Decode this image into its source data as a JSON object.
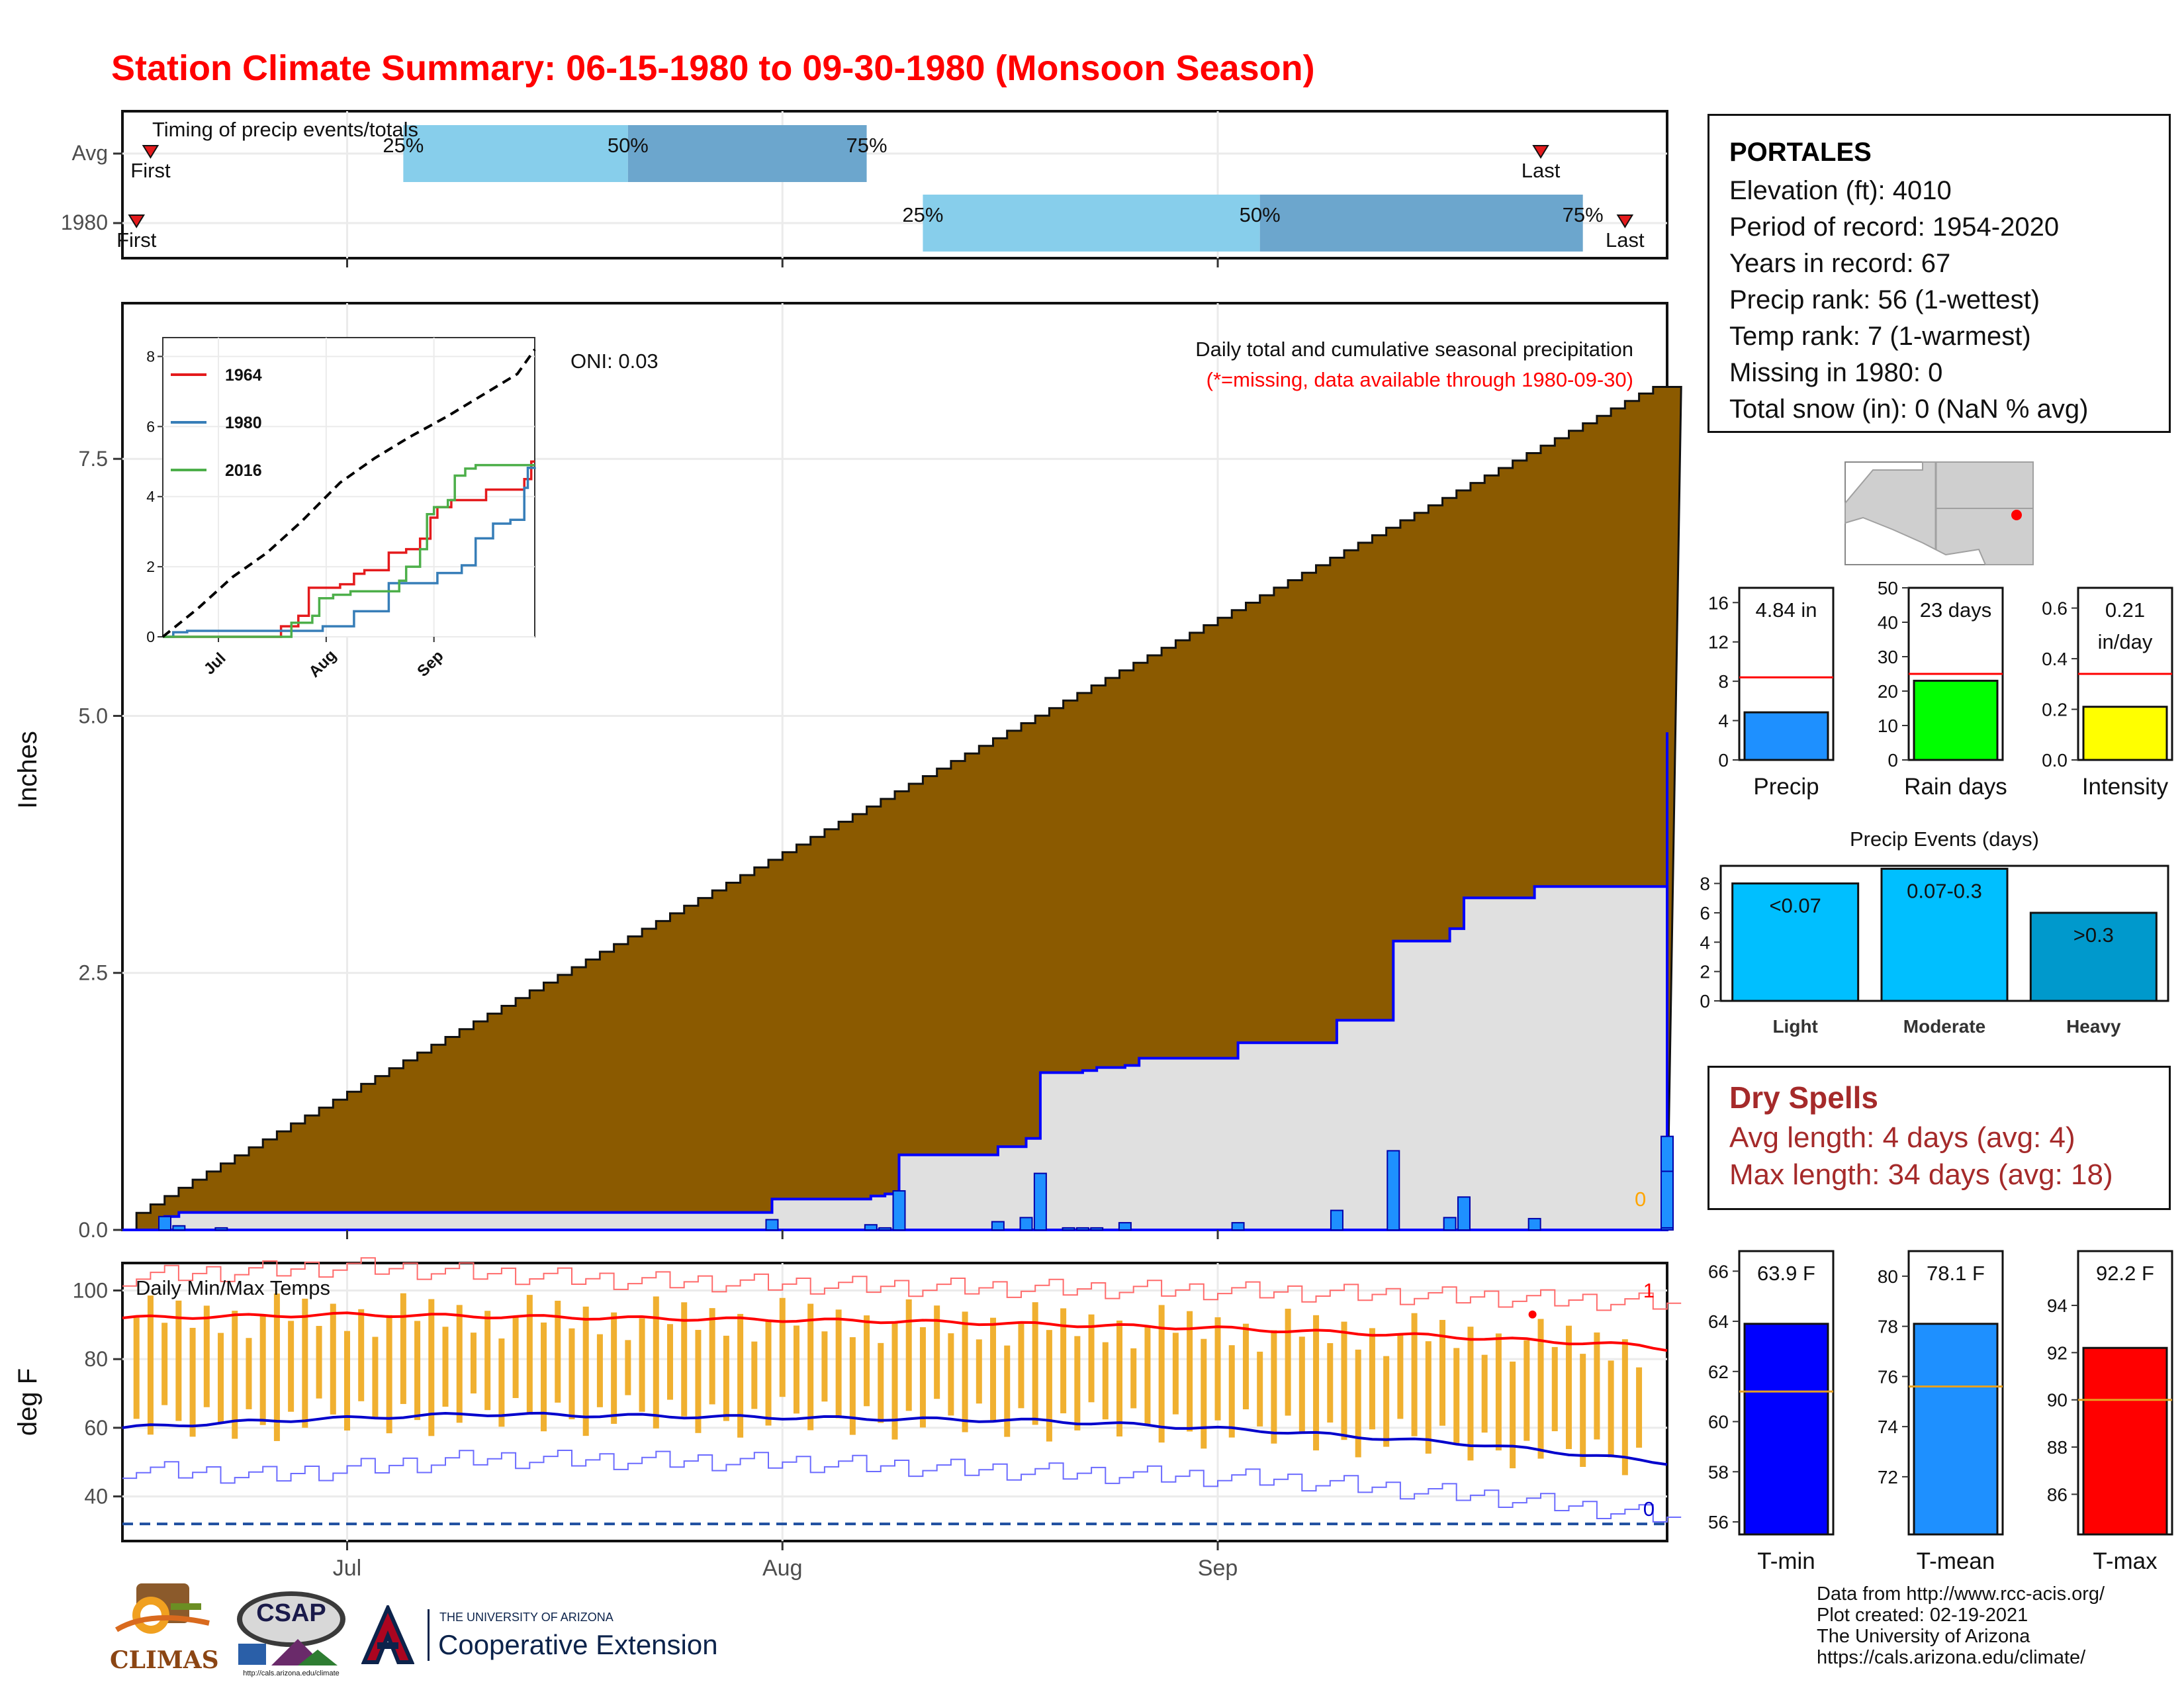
{
  "title": "Station Climate Summary: 06-15-1980 to 09-30-1980 (Monsoon Season)",
  "colors": {
    "title": "#ff0000",
    "cumulative_fill": "#8b5a00",
    "current_fill": "#e0e0e0",
    "current_line": "#0000ff",
    "daily_bars": "#1e90ff",
    "temp_bars": "#f0b030",
    "tmax_line": "#ff0000",
    "tmin_line": "#0000cc",
    "q_light": "#87ceeb",
    "q_dark": "#6ca6cd"
  },
  "timing": {
    "title": "Timing of precip events/totals",
    "row_labels": [
      "Avg",
      "1980"
    ],
    "pct_labels": [
      "25%",
      "50%",
      "75%"
    ],
    "first_label": "First",
    "last_label": "Last"
  },
  "station": {
    "name": "PORTALES",
    "lines": [
      "Elevation (ft): 4010",
      "Period of record: 1954-2020",
      "Years in record: 67",
      "Precip rank: 56 (1-wettest)",
      "Temp rank: 7 (1-warmest)",
      "Missing in 1980: 0",
      "Total snow (in): 0 (NaN % avg)"
    ]
  },
  "dry_spells": {
    "title": "Dry Spells",
    "avg_line": "Avg length: 4 days (avg: 4)",
    "max_line": "Max length: 34 days (avg: 18)"
  },
  "credits": [
    "Data from http://www.rcc-acis.org/",
    "Plot created: 02-19-2021",
    "The University of Arizona",
    "https://cals.arizona.edu/climate/"
  ],
  "logos": {
    "climas": "CLIMAS",
    "csap": "CSAP",
    "csap_url": "http://cals.arizona.edu/climate",
    "ua_small": "THE UNIVERSITY OF ARIZONA",
    "ua_big": "Cooperative Extension"
  },
  "chart_data": [
    {
      "id": "timing",
      "type": "bar",
      "title": "Timing of precip events/totals",
      "rows": [
        {
          "name": "Avg",
          "first": "1980-06-17",
          "p25": "1980-07-05",
          "p50": "1980-07-21",
          "p75": "1980-08-07",
          "last": "1980-09-24"
        },
        {
          "name": "1980",
          "first": "1980-06-16",
          "p25": "1980-08-11",
          "p50": "1980-09-04",
          "p75": "1980-09-27",
          "last": "1980-09-30"
        }
      ]
    },
    {
      "id": "main_precip",
      "type": "area",
      "title": "Daily total and cumulative seasonal precipitation",
      "subtitle": "(*=missing, data available through 1980-09-30)",
      "annotation": "ONI: 0.03",
      "ylabel": "Inches",
      "ylim": [
        0,
        8.95
      ],
      "yticks": [
        0.0,
        2.5,
        5.0,
        7.5
      ],
      "xticks": [
        "Jul",
        "Aug",
        "Sep"
      ],
      "xrange": [
        "1980-06-15",
        "1980-09-30"
      ],
      "right_label": "0",
      "avg_cumulative_end": 8.2,
      "cumulative_1980": [
        [
          "1980-06-15",
          0.0
        ],
        [
          "1980-06-18",
          0.13
        ],
        [
          "1980-06-19",
          0.17
        ],
        [
          "1980-06-22",
          0.17
        ],
        [
          "1980-07-30",
          0.17
        ],
        [
          "1980-07-31",
          0.3
        ],
        [
          "1980-08-06",
          0.3
        ],
        [
          "1980-08-07",
          0.33
        ],
        [
          "1980-08-08",
          0.35
        ],
        [
          "1980-08-09",
          0.73
        ],
        [
          "1980-08-15",
          0.73
        ],
        [
          "1980-08-16",
          0.81
        ],
        [
          "1980-08-17",
          0.81
        ],
        [
          "1980-08-18",
          0.89
        ],
        [
          "1980-08-19",
          1.53
        ],
        [
          "1980-08-22",
          1.55
        ],
        [
          "1980-08-23",
          1.58
        ],
        [
          "1980-08-25",
          1.6
        ],
        [
          "1980-08-26",
          1.67
        ],
        [
          "1980-09-01",
          1.67
        ],
        [
          "1980-09-02",
          1.82
        ],
        [
          "1980-09-08",
          1.82
        ],
        [
          "1980-09-09",
          2.04
        ],
        [
          "1980-09-12",
          2.04
        ],
        [
          "1980-09-13",
          2.81
        ],
        [
          "1980-09-16",
          2.81
        ],
        [
          "1980-09-17",
          2.93
        ],
        [
          "1980-09-18",
          3.23
        ],
        [
          "1980-09-22",
          3.23
        ],
        [
          "1980-09-23",
          3.34
        ],
        [
          "1980-10-02",
          3.34
        ],
        [
          "1980-10-03",
          4.25
        ],
        [
          "1980-10-04",
          4.82
        ],
        [
          "1980-10-05",
          4.84
        ]
      ],
      "daily_1980": [
        [
          "1980-06-18",
          0.13
        ],
        [
          "1980-06-19",
          0.04
        ],
        [
          "1980-06-22",
          0.02
        ],
        [
          "1980-07-31",
          0.1
        ],
        [
          "1980-08-07",
          0.05
        ],
        [
          "1980-08-08",
          0.02
        ],
        [
          "1980-08-09",
          0.38
        ],
        [
          "1980-08-16",
          0.08
        ],
        [
          "1980-08-18",
          0.12
        ],
        [
          "1980-08-19",
          0.55
        ],
        [
          "1980-08-21",
          0.02
        ],
        [
          "1980-08-22",
          0.02
        ],
        [
          "1980-08-23",
          0.02
        ],
        [
          "1980-08-25",
          0.07
        ],
        [
          "1980-09-02",
          0.07
        ],
        [
          "1980-09-09",
          0.19
        ],
        [
          "1980-09-13",
          0.77
        ],
        [
          "1980-09-17",
          0.12
        ],
        [
          "1980-09-18",
          0.32
        ],
        [
          "1980-09-23",
          0.11
        ],
        [
          "1980-10-03",
          0.91
        ],
        [
          "1980-10-04",
          0.57
        ],
        [
          "1980-10-05",
          0.02
        ]
      ]
    },
    {
      "id": "inset",
      "type": "line",
      "yticks": [
        0,
        2,
        4,
        6,
        8
      ],
      "xticks": [
        "Jul",
        "Aug",
        "Sep"
      ],
      "ylim": [
        0,
        8.2
      ],
      "series": [
        {
          "name": "1964",
          "color": "#e41a1c",
          "points": [
            [
              "1980-06-15",
              0
            ],
            [
              "1980-07-14",
              0
            ],
            [
              "1980-07-19",
              0.3
            ],
            [
              "1980-07-24",
              0.6
            ],
            [
              "1980-07-27",
              1.4
            ],
            [
              "1980-08-05",
              1.5
            ],
            [
              "1980-08-09",
              1.8
            ],
            [
              "1980-08-12",
              1.9
            ],
            [
              "1980-08-16",
              1.9
            ],
            [
              "1980-08-19",
              2.4
            ],
            [
              "1980-08-24",
              2.5
            ],
            [
              "1980-08-28",
              2.8
            ],
            [
              "1980-08-31",
              3.4
            ],
            [
              "1980-09-02",
              3.7
            ],
            [
              "1980-09-06",
              3.9
            ],
            [
              "1980-09-16",
              4.2
            ],
            [
              "1980-09-27",
              4.5
            ],
            [
              "1980-09-29",
              5.0
            ],
            [
              "1980-09-30",
              5.0
            ]
          ]
        },
        {
          "name": "1980",
          "color": "#377eb8",
          "points": [
            [
              "1980-06-15",
              0
            ],
            [
              "1980-06-18",
              0.13
            ],
            [
              "1980-06-22",
              0.17
            ],
            [
              "1980-07-31",
              0.3
            ],
            [
              "1980-08-09",
              0.73
            ],
            [
              "1980-08-19",
              1.53
            ],
            [
              "1980-09-02",
              1.82
            ],
            [
              "1980-09-09",
              2.04
            ],
            [
              "1980-09-13",
              2.81
            ],
            [
              "1980-09-18",
              3.23
            ],
            [
              "1980-09-23",
              3.34
            ],
            [
              "1980-09-27",
              4.25
            ],
            [
              "1980-09-28",
              4.82
            ],
            [
              "1980-09-30",
              4.84
            ]
          ]
        },
        {
          "name": "2016",
          "color": "#4daf4a",
          "points": [
            [
              "1980-06-15",
              0
            ],
            [
              "1980-07-14",
              0
            ],
            [
              "1980-07-22",
              0.4
            ],
            [
              "1980-07-28",
              0.6
            ],
            [
              "1980-07-30",
              1.1
            ],
            [
              "1980-08-03",
              1.2
            ],
            [
              "1980-08-08",
              1.3
            ],
            [
              "1980-08-15",
              1.3
            ],
            [
              "1980-08-22",
              1.6
            ],
            [
              "1980-08-24",
              2.0
            ],
            [
              "1980-08-28",
              2.5
            ],
            [
              "1980-08-30",
              3.5
            ],
            [
              "1980-09-01",
              3.7
            ],
            [
              "1980-09-05",
              3.9
            ],
            [
              "1980-09-07",
              4.6
            ],
            [
              "1980-09-10",
              4.8
            ],
            [
              "1980-09-13",
              4.9
            ],
            [
              "1980-09-16",
              4.9
            ],
            [
              "1980-09-30",
              4.9
            ]
          ]
        },
        {
          "name": "",
          "color": "#000000",
          "dashed": true,
          "points": [
            [
              "1980-06-15",
              0
            ],
            [
              "1980-06-25",
              0.8
            ],
            [
              "1980-07-05",
              1.7
            ],
            [
              "1980-07-15",
              2.4
            ],
            [
              "1980-07-25",
              3.3
            ],
            [
              "1980-08-05",
              4.4
            ],
            [
              "1980-08-15",
              5.1
            ],
            [
              "1980-08-25",
              5.7
            ],
            [
              "1980-09-05",
              6.3
            ],
            [
              "1980-09-15",
              6.9
            ],
            [
              "1980-09-25",
              7.5
            ],
            [
              "1980-09-30",
              8.2
            ]
          ]
        }
      ]
    },
    {
      "id": "stat_bars",
      "type": "bar",
      "panels": [
        {
          "label": "Precip",
          "value": 4.84,
          "value_label": "4.84 in",
          "avg": 8.4,
          "ylim": [
            0,
            17.5
          ],
          "yticks": [
            0,
            4,
            8,
            12,
            16
          ],
          "color": "#1e90ff"
        },
        {
          "label": "Rain days",
          "value": 23,
          "value_label": "23 days",
          "avg": 25,
          "ylim": [
            0,
            50
          ],
          "yticks": [
            0,
            10,
            20,
            30,
            40,
            50
          ],
          "color": "#00ff00"
        },
        {
          "label": "Intensity",
          "value": 0.21,
          "value_label": "0.21 in/day",
          "avg": 0.34,
          "ylim": [
            0,
            0.68
          ],
          "yticks": [
            0.0,
            0.2,
            0.4,
            0.6
          ],
          "color": "#ffff00"
        }
      ]
    },
    {
      "id": "precip_events",
      "type": "bar",
      "title": "Precip Events (days)",
      "categories": [
        "Light",
        "Moderate",
        "Heavy"
      ],
      "values": [
        8,
        9,
        6
      ],
      "labels": [
        "<0.07",
        "0.07-0.3",
        ">0.3"
      ],
      "colors": [
        "#00bfff",
        "#00bfff",
        "#0099cc"
      ],
      "ylim": [
        0,
        9.2
      ],
      "yticks": [
        0,
        2,
        4,
        6,
        8
      ]
    },
    {
      "id": "temps",
      "type": "line",
      "title": "Daily Min/Max Temps",
      "ylabel": "deg F",
      "ylim": [
        27,
        108
      ],
      "yticks": [
        40,
        60,
        80,
        100
      ],
      "xticks": [
        "Jul",
        "Aug",
        "Sep"
      ],
      "right_top_label": "1",
      "right_bottom_label": "0",
      "freeze_line": 32,
      "avg_max": [
        [
          "1980-06-15",
          92
        ],
        [
          "1980-07-01",
          93
        ],
        [
          "1980-07-20",
          92
        ],
        [
          "1980-08-10",
          91
        ],
        [
          "1980-09-01",
          89
        ],
        [
          "1980-09-15",
          87
        ],
        [
          "1980-10-01",
          84
        ],
        [
          "1980-10-05",
          82
        ]
      ],
      "avg_min": [
        [
          "1980-06-15",
          60
        ],
        [
          "1980-06-25",
          62
        ],
        [
          "1980-07-10",
          64
        ],
        [
          "1980-08-01",
          63
        ],
        [
          "1980-08-20",
          62
        ],
        [
          "1980-09-05",
          59
        ],
        [
          "1980-09-20",
          55
        ],
        [
          "1980-10-05",
          49
        ]
      ],
      "record_max": [
        [
          "1980-06-15",
          104
        ],
        [
          "1980-07-01",
          107
        ],
        [
          "1980-07-20",
          103
        ],
        [
          "1980-08-10",
          101
        ],
        [
          "1980-09-01",
          100
        ],
        [
          "1980-09-20",
          98
        ],
        [
          "1980-10-05",
          96
        ]
      ],
      "record_min": [
        [
          "1980-06-15",
          48
        ],
        [
          "1980-06-25",
          46
        ],
        [
          "1980-07-10",
          51
        ],
        [
          "1980-08-01",
          50
        ],
        [
          "1980-08-20",
          47
        ],
        [
          "1980-09-05",
          45
        ],
        [
          "1980-09-20",
          40
        ],
        [
          "1980-10-05",
          33
        ]
      ],
      "daily_tmax_avg": 92.2,
      "daily_tmin_avg": 63.9
    },
    {
      "id": "temp_stat_bars",
      "type": "bar",
      "panels": [
        {
          "label": "T-min",
          "value": 63.9,
          "value_label": "63.9 F",
          "avg": 61.2,
          "ylim": [
            55.5,
            66.8
          ],
          "yticks": [
            56,
            58,
            60,
            62,
            64,
            66
          ],
          "color": "#0000ff"
        },
        {
          "label": "T-mean",
          "value": 78.1,
          "value_label": "78.1 F",
          "avg": 75.6,
          "ylim": [
            69.7,
            81.0
          ],
          "yticks": [
            72,
            74,
            76,
            78,
            80
          ],
          "color": "#1e90ff"
        },
        {
          "label": "T-max",
          "value": 92.2,
          "value_label": "92.2 F",
          "avg": 90.0,
          "ylim": [
            84.3,
            96.3
          ],
          "yticks": [
            86,
            88,
            90,
            92,
            94
          ],
          "color": "#ff0000"
        }
      ]
    }
  ]
}
